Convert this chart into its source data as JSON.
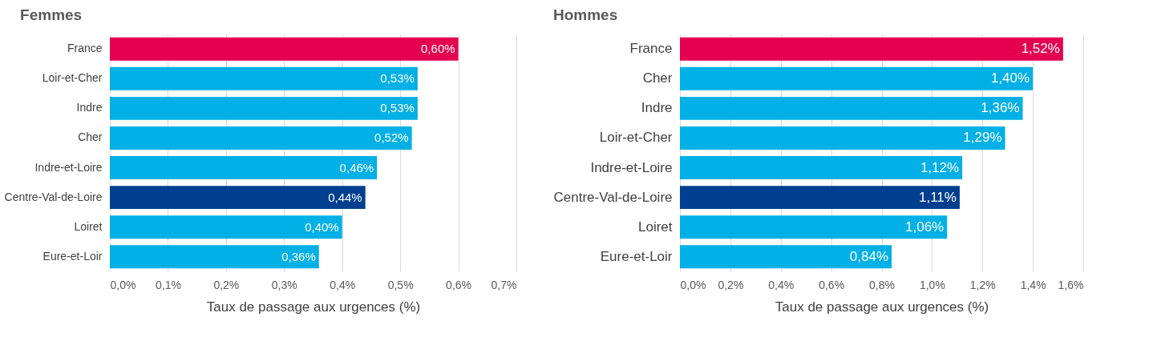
{
  "chart_data": [
    {
      "type": "bar",
      "orientation": "horizontal",
      "title": "Femmes",
      "xlabel": "Taux de passage aux urgences (%)",
      "grid": "x",
      "categories": [
        "France",
        "Loir-et-Cher",
        "Indre",
        "Cher",
        "Indre-et-Loire",
        "Centre-Val-de-Loire",
        "Loiret",
        "Eure-et-Loir"
      ],
      "values": [
        0.6,
        0.53,
        0.53,
        0.52,
        0.46,
        0.44,
        0.4,
        0.36
      ],
      "value_labels": [
        "0,60%",
        "0,53%",
        "0,53%",
        "0,52%",
        "0,46%",
        "0,44%",
        "0,40%",
        "0,36%"
      ],
      "colors": [
        "#e4004f",
        "#00b0e6",
        "#00b0e6",
        "#00b0e6",
        "#00b0e6",
        "#003f8f",
        "#00b0e6",
        "#00b0e6"
      ],
      "xlim": [
        0,
        0.7
      ],
      "xticks": [
        {
          "value": 0,
          "label": "0,0%"
        },
        {
          "value": 0.1,
          "label": "0,1%"
        },
        {
          "value": 0.2,
          "label": "0,2%"
        },
        {
          "value": 0.3,
          "label": "0,3%"
        },
        {
          "value": 0.4,
          "label": "0,4%"
        },
        {
          "value": 0.5,
          "label": "0,5%"
        },
        {
          "value": 0.6,
          "label": "0,6%"
        },
        {
          "value": 0.7,
          "label": "0,7%"
        }
      ]
    },
    {
      "type": "bar",
      "orientation": "horizontal",
      "title": "Hommes",
      "xlabel": "Taux de passage aux urgences (%)",
      "grid": "x",
      "categories": [
        "France",
        "Cher",
        "Indre",
        "Loir-et-Cher",
        "Indre-et-Loire",
        "Centre-Val-de-Loire",
        "Loiret",
        "Eure-et-Loir"
      ],
      "values": [
        1.52,
        1.4,
        1.36,
        1.29,
        1.12,
        1.11,
        1.06,
        0.84
      ],
      "value_labels": [
        "1,52%",
        "1,40%",
        "1,36%",
        "1,29%",
        "1,12%",
        "1,11%",
        "1,06%",
        "0,84%"
      ],
      "colors": [
        "#e4004f",
        "#00b0e6",
        "#00b0e6",
        "#00b0e6",
        "#00b0e6",
        "#003f8f",
        "#00b0e6",
        "#00b0e6"
      ],
      "xlim": [
        0,
        1.6
      ],
      "xticks": [
        {
          "value": 0,
          "label": "0,0%"
        },
        {
          "value": 0.2,
          "label": "0,2%"
        },
        {
          "value": 0.4,
          "label": "0,4%"
        },
        {
          "value": 0.6,
          "label": "0,6%"
        },
        {
          "value": 0.8,
          "label": "0,8%"
        },
        {
          "value": 1.0,
          "label": "1,0%"
        },
        {
          "value": 1.2,
          "label": "1,2%"
        },
        {
          "value": 1.4,
          "label": "1,4%"
        },
        {
          "value": 1.6,
          "label": "1,6%"
        }
      ]
    }
  ]
}
